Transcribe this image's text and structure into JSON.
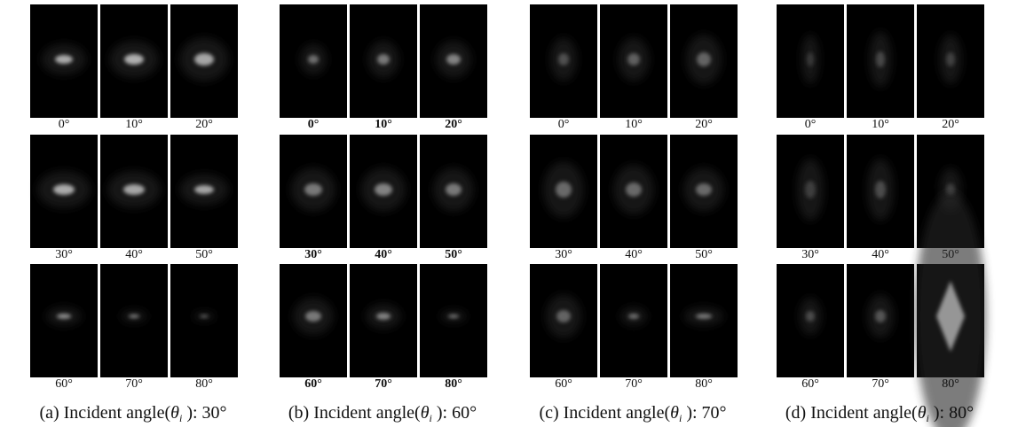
{
  "panels": [
    {
      "labels": [
        "0°",
        "10°",
        "20°",
        "30°",
        "40°",
        "50°",
        "60°",
        "70°",
        "80°"
      ],
      "caption": {
        "prefix": "(a) Incident angle(",
        "symbol": "θ",
        "subscript": "i",
        "suffix": " ): 30°"
      }
    },
    {
      "labels": [
        "0°",
        "10°",
        "20°",
        "30°",
        "40°",
        "50°",
        "60°",
        "70°",
        "80°"
      ],
      "caption": {
        "prefix": "(b) Incident angle(",
        "symbol": "θ",
        "subscript": "i",
        "suffix": " ): 60°"
      }
    },
    {
      "labels": [
        "0°",
        "10°",
        "20°",
        "30°",
        "40°",
        "50°",
        "60°",
        "70°",
        "80°"
      ],
      "caption": {
        "prefix": "(c) Incident angle(",
        "symbol": "θ",
        "subscript": "i",
        "suffix": " ): 70°"
      }
    },
    {
      "labels": [
        "0°",
        "10°",
        "20°",
        "30°",
        "40°",
        "50°",
        "60°",
        "70°",
        "80°"
      ],
      "caption": {
        "prefix": "(d) Incident angle(",
        "symbol": "θ",
        "subscript": "i",
        "suffix": " ): 80°"
      }
    }
  ]
}
